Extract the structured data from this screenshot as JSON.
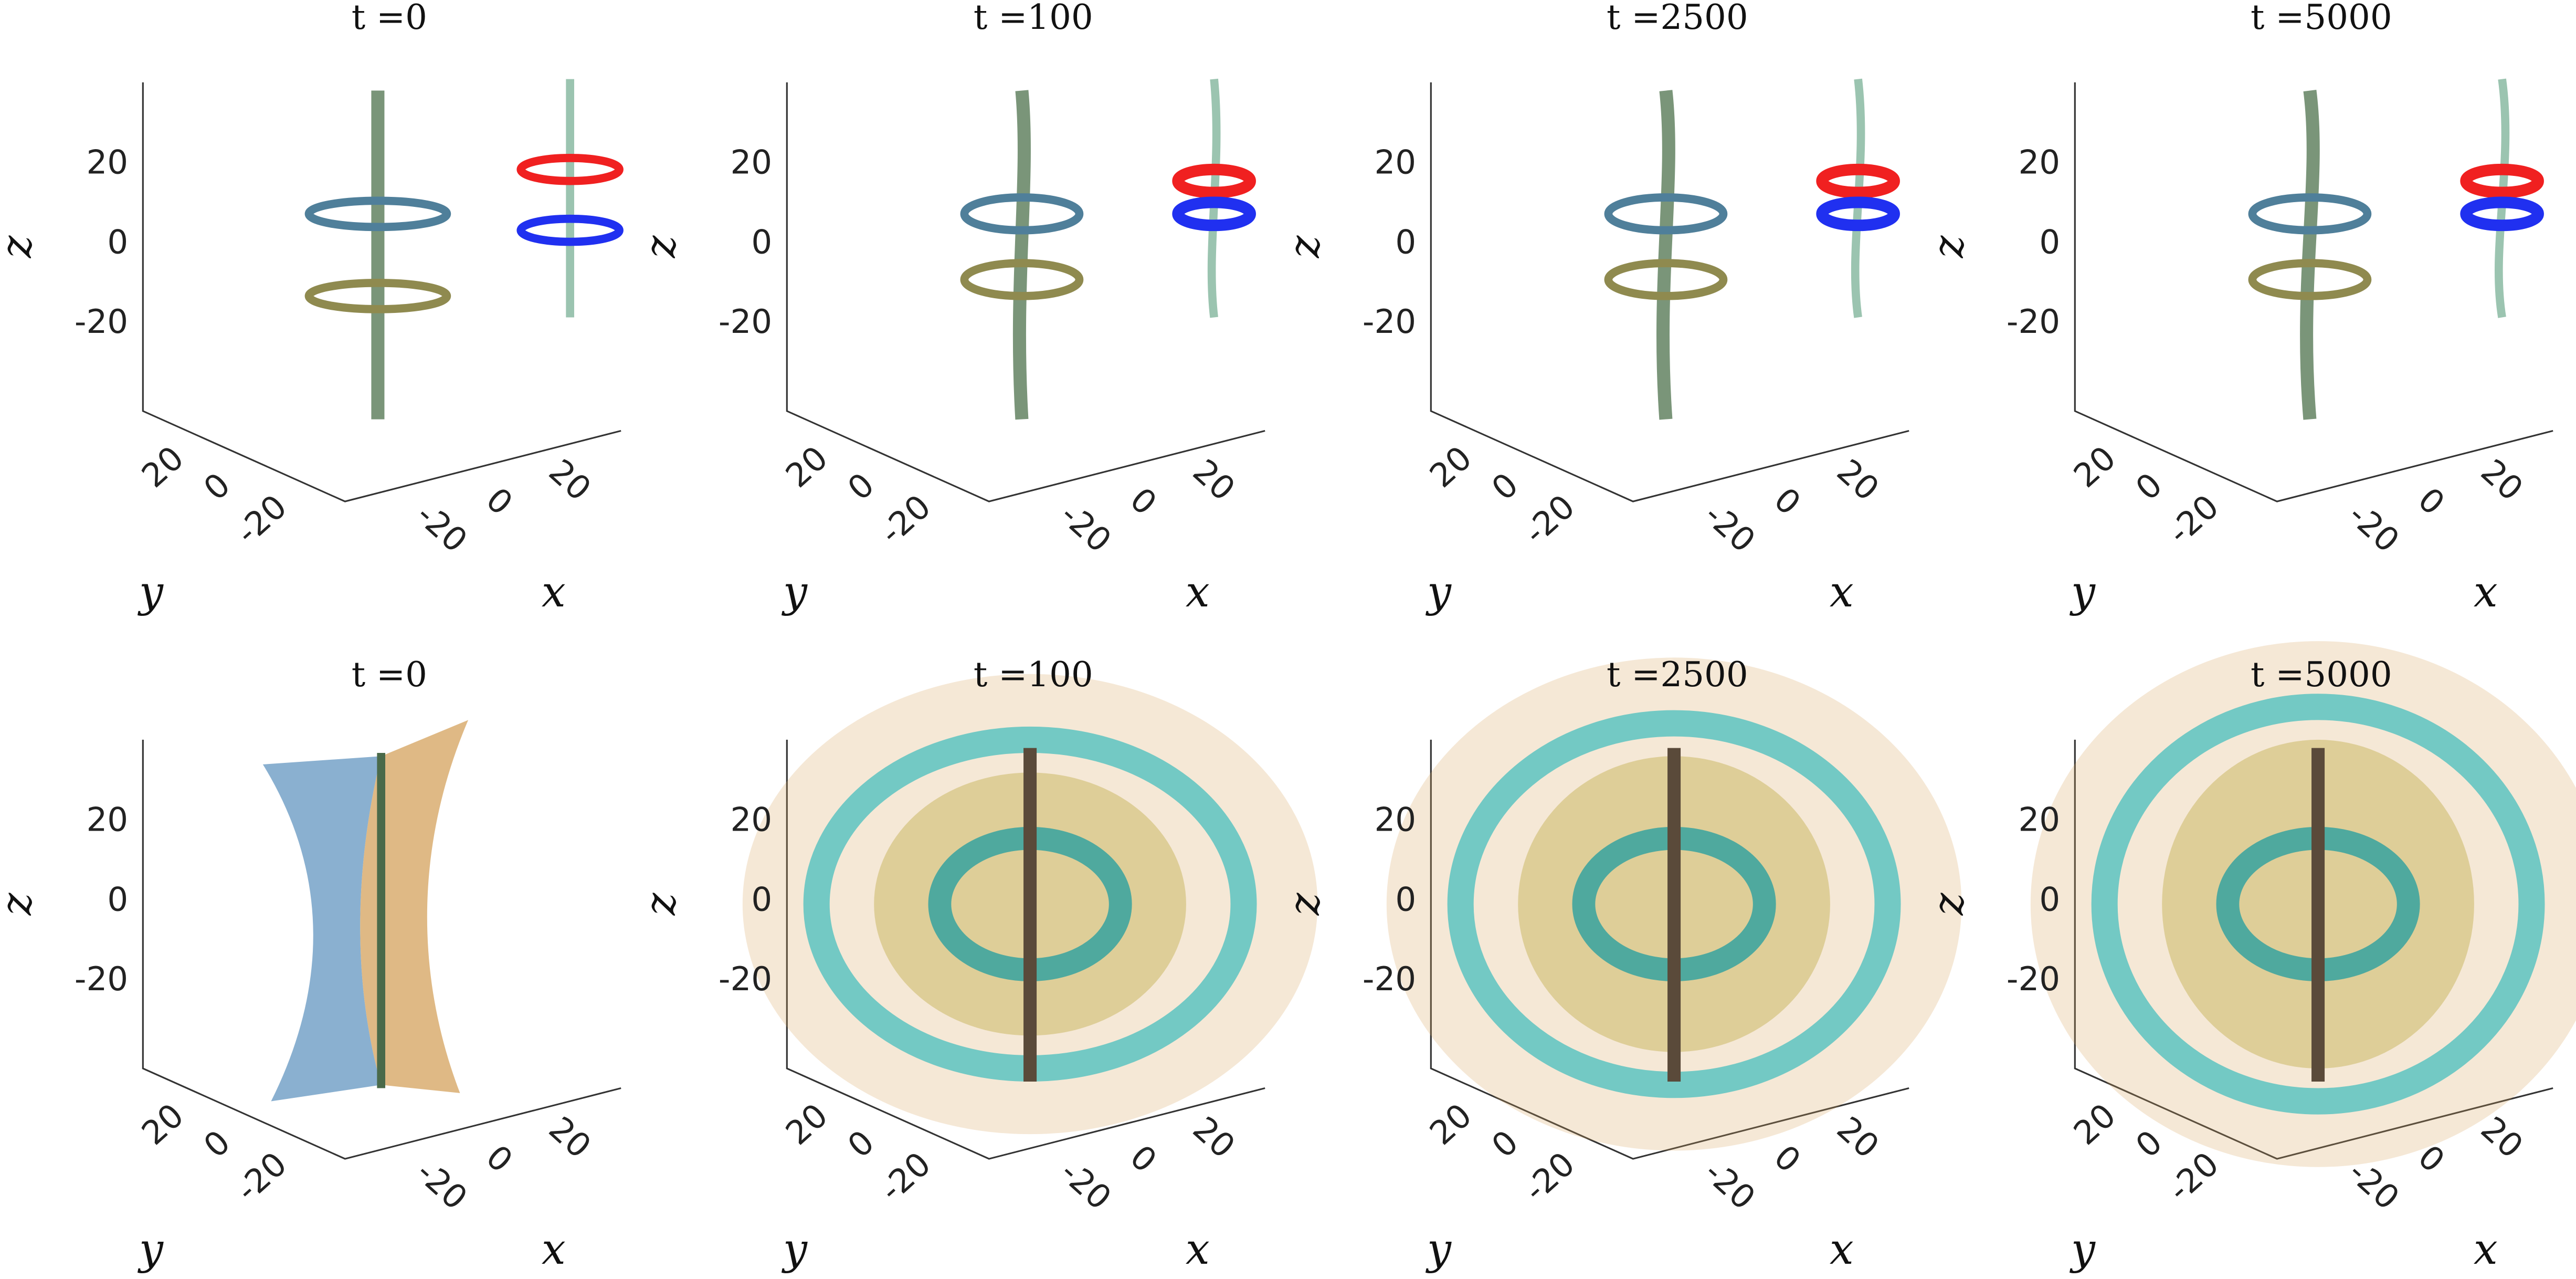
{
  "panels": [
    {
      "title": "t =0",
      "x_label": "x",
      "y_label": "y",
      "z_label": "z",
      "z_ticks": [
        "20",
        "0",
        "-20"
      ],
      "y_ticks": [
        "20",
        "0",
        "-20"
      ],
      "x_ticks": [
        "-20",
        "0",
        "20"
      ]
    },
    {
      "title": "t =100",
      "x_label": "x",
      "y_label": "y",
      "z_label": "z",
      "z_ticks": [
        "20",
        "0",
        "-20"
      ],
      "y_ticks": [
        "20",
        "0",
        "-20"
      ],
      "x_ticks": [
        "-20",
        "0",
        "20"
      ]
    },
    {
      "title": "t =2500",
      "x_label": "x",
      "y_label": "y",
      "z_label": "z",
      "z_ticks": [
        "20",
        "0",
        "-20"
      ],
      "y_ticks": [
        "20",
        "0",
        "-20"
      ],
      "x_ticks": [
        "-20",
        "0",
        "20"
      ]
    },
    {
      "title": "t =5000",
      "x_label": "x",
      "y_label": "y",
      "z_label": "z",
      "z_ticks": [
        "20",
        "0",
        "-20"
      ],
      "y_ticks": [
        "20",
        "0",
        "-20"
      ],
      "x_ticks": [
        "-20",
        "0",
        "20"
      ]
    },
    {
      "title": "t =0",
      "x_label": "x",
      "y_label": "y",
      "z_label": "z",
      "z_ticks": [
        "20",
        "0",
        "-20"
      ],
      "y_ticks": [
        "20",
        "0",
        "-20"
      ],
      "x_ticks": [
        "-20",
        "0",
        "20"
      ]
    },
    {
      "title": "t =100",
      "x_label": "x",
      "y_label": "y",
      "z_label": "z",
      "z_ticks": [
        "20",
        "0",
        "-20"
      ],
      "y_ticks": [
        "20",
        "0",
        "-20"
      ],
      "x_ticks": [
        "-20",
        "0",
        "20"
      ]
    },
    {
      "title": "t =2500",
      "x_label": "x",
      "y_label": "y",
      "z_label": "z",
      "z_ticks": [
        "20",
        "0",
        "-20"
      ],
      "y_ticks": [
        "20",
        "0",
        "-20"
      ],
      "x_ticks": [
        "-20",
        "0",
        "20"
      ]
    },
    {
      "title": "t =5000",
      "x_label": "x",
      "y_label": "y",
      "z_label": "z",
      "z_ticks": [
        "20",
        "0",
        "-20"
      ],
      "y_ticks": [
        "20",
        "0",
        "-20"
      ],
      "x_ticks": [
        "-20",
        "0",
        "20"
      ]
    }
  ]
}
